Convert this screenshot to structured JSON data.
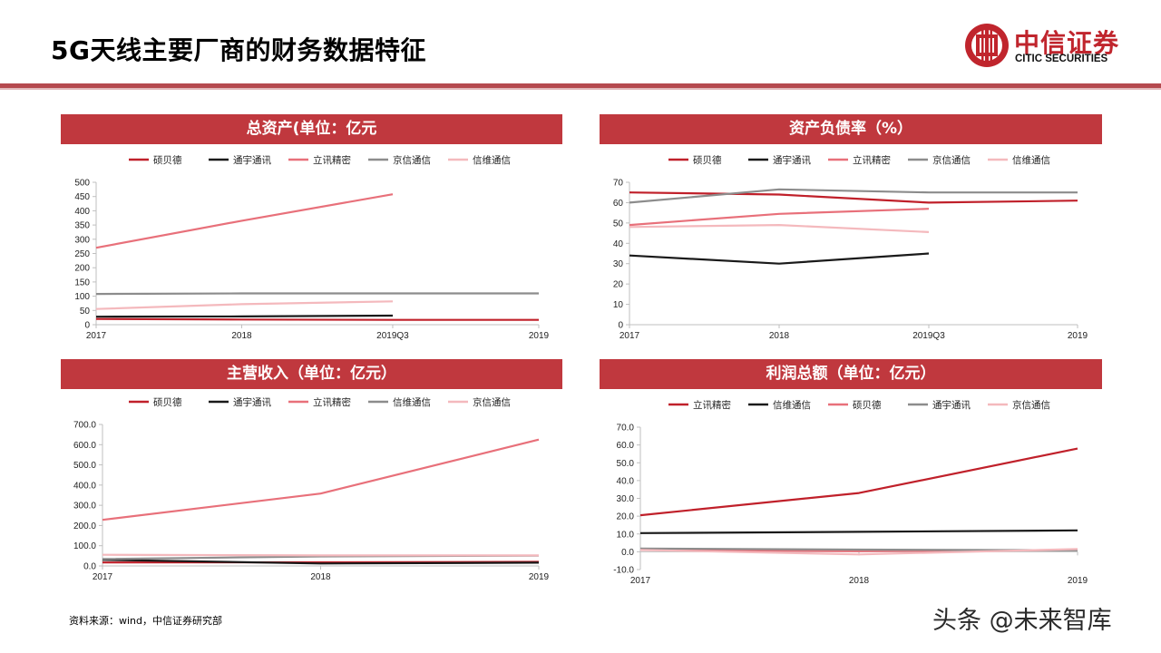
{
  "page": {
    "title": "5G天线主要厂商的财务数据特征",
    "source": "资料来源：wind，中信证券研究部",
    "watermark": "头条 @未来智库"
  },
  "logo": {
    "name_cn": "中信证券",
    "name_en": "CITIC SECURITIES",
    "brand_color": "#c0252d"
  },
  "colors": {
    "header_bg": "#c0383e",
    "dark_red": "#c0202a",
    "black": "#1a1a1a",
    "pink": "#e8707a",
    "gray": "#8c8c8c",
    "light_pink": "#f4b9bd"
  },
  "chart_data": [
    {
      "type": "line",
      "title": "总资产(单位：亿元",
      "x": [
        "2017",
        "2018",
        "2019Q3",
        "2019"
      ],
      "ylim": [
        0,
        500
      ],
      "yticks": [
        "0",
        "50",
        "100",
        "150",
        "200",
        "250",
        "300",
        "350",
        "400",
        "450",
        "500"
      ],
      "legend_position": "top",
      "series": [
        {
          "name": "硕贝德",
          "color": "#c0202a",
          "values": [
            20,
            18,
            17,
            17
          ]
        },
        {
          "name": "通宇通讯",
          "color": "#1a1a1a",
          "values": [
            28,
            29,
            32,
            null
          ]
        },
        {
          "name": "立讯精密",
          "color": "#e8707a",
          "values": [
            270,
            365,
            458,
            null
          ]
        },
        {
          "name": "京信通信",
          "color": "#8c8c8c",
          "values": [
            108,
            110,
            110,
            110
          ]
        },
        {
          "name": "信维通信",
          "color": "#f4b9bd",
          "values": [
            55,
            72,
            82,
            null
          ]
        }
      ]
    },
    {
      "type": "line",
      "title": "资产负债率（%）",
      "x": [
        "2017",
        "2018",
        "2019Q3",
        "2019"
      ],
      "ylim": [
        0,
        70
      ],
      "yticks": [
        "0",
        "10",
        "20",
        "30",
        "40",
        "50",
        "60",
        "70"
      ],
      "legend_position": "top",
      "series": [
        {
          "name": "硕贝德",
          "color": "#c0202a",
          "values": [
            65,
            64,
            60,
            61
          ]
        },
        {
          "name": "通宇通讯",
          "color": "#1a1a1a",
          "values": [
            34,
            30,
            35,
            null
          ]
        },
        {
          "name": "立讯精密",
          "color": "#e8707a",
          "values": [
            49,
            54.5,
            57,
            null
          ]
        },
        {
          "name": "京信通信",
          "color": "#8c8c8c",
          "values": [
            60,
            66.5,
            65,
            65
          ]
        },
        {
          "name": "信维通信",
          "color": "#f4b9bd",
          "values": [
            48,
            49,
            45.5,
            null
          ]
        }
      ]
    },
    {
      "type": "line",
      "title": "主营收入（单位：亿元）",
      "x": [
        "2017",
        "2018",
        "2019"
      ],
      "ylim": [
        0,
        700
      ],
      "yticks": [
        "0.0",
        "100.0",
        "200.0",
        "300.0",
        "400.0",
        "500.0",
        "600.0",
        "700.0"
      ],
      "legend_position": "top",
      "series": [
        {
          "name": "硕贝德",
          "color": "#c0202a",
          "values": [
            17,
            18,
            20
          ]
        },
        {
          "name": "通宇通讯",
          "color": "#1a1a1a",
          "values": [
            30,
            12,
            16
          ]
        },
        {
          "name": "立讯精密",
          "color": "#e8707a",
          "values": [
            228,
            358,
            625
          ]
        },
        {
          "name": "信维通信",
          "color": "#8c8c8c",
          "values": [
            34,
            47,
            51
          ]
        },
        {
          "name": "京信通信",
          "color": "#f4b9bd",
          "values": [
            55,
            52,
            52
          ]
        }
      ]
    },
    {
      "type": "line",
      "title": "利润总额（单位：亿元）",
      "x": [
        "2017",
        "2018",
        "2019"
      ],
      "ylim": [
        -10,
        70
      ],
      "yticks": [
        "-10.0",
        "0.0",
        "10.0",
        "20.0",
        "30.0",
        "40.0",
        "50.0",
        "60.0",
        "70.0"
      ],
      "legend_position": "top",
      "series": [
        {
          "name": "立讯精密",
          "color": "#c0202a",
          "values": [
            20.5,
            33,
            58
          ]
        },
        {
          "name": "信维通信",
          "color": "#1a1a1a",
          "values": [
            10.5,
            11.2,
            12
          ]
        },
        {
          "name": "硕贝德",
          "color": "#e8707a",
          "values": [
            1.2,
            0.3,
            1
          ]
        },
        {
          "name": "通宇通讯",
          "color": "#8c8c8c",
          "values": [
            1.8,
            1.2,
            0.8
          ]
        },
        {
          "name": "京信通信",
          "color": "#f4b9bd",
          "values": [
            1,
            -1.5,
            1.5
          ]
        }
      ]
    }
  ]
}
